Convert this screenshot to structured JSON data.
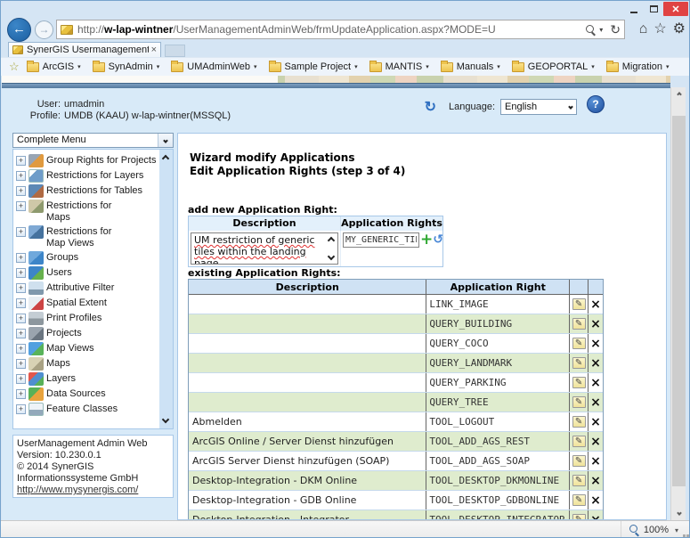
{
  "icons": {
    "close_x": "✕",
    "back_arrow": "←",
    "forward_arrow": "→",
    "refresh": "↻",
    "home": "⌂",
    "star": "☆",
    "gear": "⚙",
    "fav_add_star": "☆",
    "caret_down": "▾",
    "tab_close": "×",
    "help": "?",
    "page_refresh": "↻",
    "plus": "+",
    "undo": "↺",
    "edit": "✎",
    "delete": "×"
  },
  "window": {
    "url_prefix": "http://",
    "url_domain": "w-lap-wintner",
    "url_path": "/UserManagementAdminWeb/frmUpdateApplication.aspx?MODE=U",
    "tab_title": "SynerGIS Usermanagement ..."
  },
  "favorites": {
    "items": [
      "ArcGIS",
      "SynAdmin",
      "UMAdminWeb",
      "Sample Project",
      "MANTIS",
      "Manuals",
      "GEOPORTAL",
      "Migration"
    ]
  },
  "page": {
    "user_label": "User:",
    "user_value": "umadmin",
    "profile_label": "Profile:",
    "profile_value": "UMDB (KAAU) w-lap-wintner(MSSQL)",
    "language_label": "Language:",
    "language_value": "English",
    "menu_filter_value": "Complete Menu",
    "tree_items": [
      {
        "label": "Group Rights for Projects",
        "icon": "group-rights-projects"
      },
      {
        "label": "Restrictions for Layers",
        "icon": "restrictions-layers"
      },
      {
        "label": "Restrictions for Tables",
        "icon": "restrictions-tables"
      },
      {
        "label": "Restrictions for\nMaps",
        "icon": "restrictions-maps"
      },
      {
        "label": "Restrictions for\nMap Views",
        "icon": "restrictions-map-views"
      },
      {
        "label": "Groups",
        "icon": "groups"
      },
      {
        "label": "Users",
        "icon": "users"
      },
      {
        "label": "Attributive Filter",
        "icon": "attributive-filter"
      },
      {
        "label": "Spatial Extent",
        "icon": "spatial-extent"
      },
      {
        "label": "Print Profiles",
        "icon": "print-profiles"
      },
      {
        "label": "Projects",
        "icon": "projects"
      },
      {
        "label": "Map Views",
        "icon": "map-views"
      },
      {
        "label": "Maps",
        "icon": "maps"
      },
      {
        "label": "Layers",
        "icon": "layers"
      },
      {
        "label": "Data Sources",
        "icon": "data-sources"
      },
      {
        "label": "Feature Classes",
        "icon": "feature-classes"
      }
    ],
    "footer": {
      "line1": "UserManagement Admin Web",
      "line2": "Version: 10.230.0.1",
      "line3": "© 2014 SynerGIS",
      "line4": "Informationssysteme GmbH",
      "link": "http://www.mysynergis.com/"
    },
    "main": {
      "heading1": "Wizard modify Applications",
      "heading2": "Edit Application Rights (step 3 of 4)",
      "add_section_label": "add new Application Right:",
      "add_table": {
        "col1": "Description",
        "col2": "Application Rights",
        "description_value": "UM restriction of generic tiles within the landing page",
        "right_value": "MY_GENERIC_TILE"
      },
      "existing_section_label": "existing Application Rights:",
      "existing_table": {
        "col1": "Description",
        "col2": "Application Right",
        "rows": [
          {
            "description": "",
            "right": "LINK_IMAGE"
          },
          {
            "description": "",
            "right": "QUERY_BUILDING"
          },
          {
            "description": "",
            "right": "QUERY_COCO"
          },
          {
            "description": "",
            "right": "QUERY_LANDMARK"
          },
          {
            "description": "",
            "right": "QUERY_PARKING"
          },
          {
            "description": "",
            "right": "QUERY_TREE"
          },
          {
            "description": "Abmelden",
            "right": "TOOL_LOGOUT"
          },
          {
            "description": "ArcGIS Online / Server Dienst hinzufügen",
            "right": "TOOL_ADD_AGS_REST"
          },
          {
            "description": "ArcGIS Server Dienst hinzufügen (SOAP)",
            "right": "TOOL_ADD_AGS_SOAP"
          },
          {
            "description": "Desktop-Integration - DKM Online",
            "right": "TOOL_DESKTOP_DKMONLINE"
          },
          {
            "description": "Desktop-Integration - GDB Online",
            "right": "TOOL_DESKTOP_GDBONLINE"
          },
          {
            "description": "Desktop-Integration - Integrator",
            "right": "TOOL_DESKTOP_INTEGRATOR"
          }
        ]
      }
    }
  },
  "status": {
    "zoom_level": "100%"
  },
  "colors": {
    "row_alt_green": "#dfecce",
    "table_header_blue": "#cfe2f4",
    "close_red": "#e04343",
    "accent_blue": "#2f6fc1",
    "page_background": "#d8eaf8"
  }
}
